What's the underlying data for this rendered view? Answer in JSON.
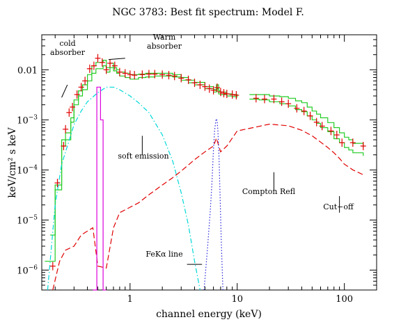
{
  "chart_data": {
    "type": "line",
    "title": "NGC 3783: Best fit spectrum: Model F.",
    "xlabel": "channel energy (keV)",
    "ylabel": "keV/cm² s keV",
    "xscale": "log",
    "yscale": "log",
    "xlim": [
      0.15,
      200
    ],
    "ylim": [
      4e-07,
      0.05
    ],
    "grid": false,
    "x_ticks": [
      {
        "value": 1,
        "label": "1"
      },
      {
        "value": 10,
        "label": "10"
      },
      {
        "value": 100,
        "label": "100"
      }
    ],
    "y_ticks": [
      {
        "value": 1e-06,
        "base": "10",
        "exp": "−6"
      },
      {
        "value": 1e-05,
        "base": "10",
        "exp": "−5"
      },
      {
        "value": 0.0001,
        "base": "10",
        "exp": "−4"
      },
      {
        "value": 0.001,
        "base": "10",
        "exp": "−3"
      },
      {
        "value": 0.01,
        "label": "0.01"
      }
    ],
    "series": [
      {
        "role": "model-total-lo",
        "color": "#22cc22",
        "style": "step",
        "x": [
          0.16,
          0.2,
          0.23,
          0.25,
          0.28,
          0.3,
          0.33,
          0.36,
          0.4,
          0.44,
          0.48,
          0.52,
          0.56,
          0.6,
          0.65,
          0.7,
          0.75,
          0.8,
          0.9,
          1.0,
          1.2,
          1.4,
          1.7,
          2.0,
          2.5,
          3.0,
          3.5,
          4.0,
          5.0,
          6.0,
          6.4,
          6.7,
          7.0,
          8.0,
          9.0,
          10.0
        ],
        "y": [
          1.5e-06,
          4e-05,
          0.0003,
          0.0004,
          0.0009,
          0.002,
          0.003,
          0.004,
          0.006,
          0.0085,
          0.0105,
          0.0105,
          0.012,
          0.009,
          0.011,
          0.0095,
          0.0085,
          0.0075,
          0.007,
          0.0065,
          0.007,
          0.0072,
          0.0075,
          0.0075,
          0.0072,
          0.0062,
          0.0055,
          0.005,
          0.0042,
          0.0036,
          0.0042,
          0.0033,
          0.0032,
          0.003,
          0.0029,
          0.0028
        ]
      },
      {
        "role": "model-total-hi",
        "color": "#22cc22",
        "style": "step",
        "x": [
          0.18,
          0.2,
          0.23,
          0.25,
          0.28,
          0.3,
          0.33,
          0.36,
          0.4,
          0.44,
          0.48,
          0.52,
          0.56,
          0.6,
          0.65,
          0.7,
          0.75,
          0.8,
          0.9,
          1.0,
          1.2,
          1.4,
          1.7,
          2.0,
          2.5,
          3.0,
          3.5,
          4.0,
          5.0,
          6.0,
          6.4,
          6.7,
          7.0,
          8.0,
          9.0,
          10.0
        ],
        "y": [
          5e-06,
          5e-05,
          0.0004,
          0.00055,
          0.0011,
          0.0025,
          0.0038,
          0.005,
          0.008,
          0.012,
          0.014,
          0.014,
          0.0155,
          0.011,
          0.0135,
          0.011,
          0.01,
          0.009,
          0.0085,
          0.008,
          0.0082,
          0.0085,
          0.0085,
          0.0085,
          0.008,
          0.007,
          0.0062,
          0.0056,
          0.0046,
          0.004,
          0.005,
          0.0038,
          0.0036,
          0.0033,
          0.0032,
          0.003
        ]
      },
      {
        "role": "model-hard-lo",
        "color": "#22cc22",
        "style": "step",
        "x": [
          13,
          16,
          20,
          25,
          30,
          35,
          40,
          45,
          50,
          55,
          60,
          70,
          80,
          90,
          100,
          110,
          120,
          150
        ],
        "y": [
          0.0026,
          0.0025,
          0.0023,
          0.0021,
          0.0019,
          0.0016,
          0.00145,
          0.0012,
          0.001,
          0.00085,
          0.0007,
          0.00058,
          0.00042,
          0.00035,
          0.00028,
          0.00025,
          0.00022,
          0.00019
        ]
      },
      {
        "role": "model-hard-hi",
        "color": "#22cc22",
        "style": "step",
        "x": [
          13,
          16,
          20,
          25,
          30,
          35,
          40,
          45,
          50,
          55,
          60,
          70,
          80,
          90,
          100,
          110,
          120,
          150
        ],
        "y": [
          0.0032,
          0.0032,
          0.003,
          0.0029,
          0.0027,
          0.0024,
          0.0022,
          0.0018,
          0.0015,
          0.0013,
          0.0011,
          0.00088,
          0.0007,
          0.00055,
          0.00045,
          0.0004,
          0.00034,
          0.00028
        ]
      },
      {
        "role": "soft-emission",
        "color": "#00d8d8",
        "style": "dashdot",
        "x": [
          0.17,
          0.2,
          0.23,
          0.26,
          0.3,
          0.35,
          0.4,
          0.5,
          0.6,
          0.7,
          0.8,
          1.0,
          1.2,
          1.5,
          2.0,
          2.5,
          3.0,
          3.5,
          4.0,
          4.5
        ],
        "y": [
          4e-07,
          2e-05,
          0.00013,
          0.0003,
          0.0008,
          0.0015,
          0.0023,
          0.0035,
          0.0045,
          0.0045,
          0.004,
          0.003,
          0.0022,
          0.0014,
          0.0005,
          0.00015,
          3.5e-05,
          8e-06,
          1.5e-06,
          4e-07
        ]
      },
      {
        "role": "compton-reflection",
        "color": "#e00000",
        "style": "dashed",
        "x": [
          0.19,
          0.22,
          0.25,
          0.3,
          0.35,
          0.4,
          0.45,
          0.5,
          0.6,
          0.7,
          0.8,
          1.0,
          1.2,
          1.5,
          2.0,
          2.5,
          3.0,
          4.0,
          5.0,
          6.0,
          6.4,
          7.0,
          8.0,
          10.0,
          15,
          20,
          30,
          40,
          50,
          60,
          70,
          80,
          90,
          100,
          120,
          150
        ],
        "y": [
          4e-07,
          1.5e-06,
          2.5e-06,
          3e-06,
          5e-06,
          6e-06,
          7e-06,
          1.2e-06,
          1.1e-06,
          7e-06,
          1.4e-05,
          1.8e-05,
          2.2e-05,
          3.2e-05,
          5e-05,
          7e-05,
          9.5e-05,
          0.00016,
          0.00023,
          0.0003,
          0.00043,
          0.00023,
          0.0003,
          0.0006,
          0.00072,
          0.00082,
          0.00076,
          0.00062,
          0.00048,
          0.00036,
          0.00028,
          0.00022,
          0.00017,
          0.00013,
          0.0001,
          8e-05
        ]
      },
      {
        "role": "feka-line",
        "color": "#2222dd",
        "style": "dotted",
        "x": [
          4.9,
          5.3,
          5.6,
          5.8,
          6.0,
          6.15,
          6.3,
          6.4,
          6.5,
          6.6,
          6.75,
          6.9,
          7.1,
          7.35
        ],
        "y": [
          4e-07,
          3e-06,
          1.5e-05,
          5e-05,
          0.00025,
          0.0006,
          0.00095,
          0.00105,
          0.00095,
          0.0006,
          0.0002,
          4e-05,
          4e-06,
          4e-07
        ]
      },
      {
        "role": "line-feature-0.5keV",
        "color": "#dd00dd",
        "style": "step",
        "x": [
          0.45,
          0.47,
          0.49,
          0.51,
          0.53,
          0.545,
          0.56,
          0.6
        ],
        "y": [
          4e-07,
          4e-07,
          0.0045,
          0.0045,
          0.001,
          0.001,
          4e-07,
          4e-07
        ]
      },
      {
        "role": "data",
        "color": "#e00000",
        "style": "crosses",
        "points": [
          {
            "x": 0.19,
            "y": 1.2e-06
          },
          {
            "x": 0.21,
            "y": 5.5e-05
          },
          {
            "x": 0.24,
            "y": 0.0003
          },
          {
            "x": 0.25,
            "y": 0.00065
          },
          {
            "x": 0.27,
            "y": 0.0014
          },
          {
            "x": 0.29,
            "y": 0.0018
          },
          {
            "x": 0.32,
            "y": 0.0032
          },
          {
            "x": 0.35,
            "y": 0.0045
          },
          {
            "x": 0.38,
            "y": 0.006
          },
          {
            "x": 0.42,
            "y": 0.0105
          },
          {
            "x": 0.46,
            "y": 0.012
          },
          {
            "x": 0.5,
            "y": 0.017
          },
          {
            "x": 0.55,
            "y": 0.014
          },
          {
            "x": 0.6,
            "y": 0.01
          },
          {
            "x": 0.65,
            "y": 0.0135
          },
          {
            "x": 0.72,
            "y": 0.012
          },
          {
            "x": 0.8,
            "y": 0.009
          },
          {
            "x": 0.9,
            "y": 0.0085
          },
          {
            "x": 1.0,
            "y": 0.008
          },
          {
            "x": 1.1,
            "y": 0.0078
          },
          {
            "x": 1.3,
            "y": 0.008
          },
          {
            "x": 1.5,
            "y": 0.0082
          },
          {
            "x": 1.7,
            "y": 0.0082
          },
          {
            "x": 2.0,
            "y": 0.008
          },
          {
            "x": 2.3,
            "y": 0.0078
          },
          {
            "x": 2.6,
            "y": 0.0075
          },
          {
            "x": 3.0,
            "y": 0.0068
          },
          {
            "x": 3.5,
            "y": 0.0063
          },
          {
            "x": 4.0,
            "y": 0.0055
          },
          {
            "x": 4.5,
            "y": 0.005
          },
          {
            "x": 5.0,
            "y": 0.0046
          },
          {
            "x": 5.5,
            "y": 0.0042
          },
          {
            "x": 6.0,
            "y": 0.0039
          },
          {
            "x": 6.5,
            "y": 0.0044
          },
          {
            "x": 7.0,
            "y": 0.0036
          },
          {
            "x": 7.5,
            "y": 0.0034
          },
          {
            "x": 8.0,
            "y": 0.0033
          },
          {
            "x": 9.0,
            "y": 0.0032
          },
          {
            "x": 9.8,
            "y": 0.0031
          },
          {
            "x": 15,
            "y": 0.0027
          },
          {
            "x": 18,
            "y": 0.0026
          },
          {
            "x": 22,
            "y": 0.0026
          },
          {
            "x": 26,
            "y": 0.0023
          },
          {
            "x": 30,
            "y": 0.0021
          },
          {
            "x": 36,
            "y": 0.0017
          },
          {
            "x": 42,
            "y": 0.0015
          },
          {
            "x": 48,
            "y": 0.0012
          },
          {
            "x": 55,
            "y": 0.0009
          },
          {
            "x": 62,
            "y": 0.00075
          },
          {
            "x": 75,
            "y": 0.0006
          },
          {
            "x": 85,
            "y": 0.0005
          },
          {
            "x": 95,
            "y": 0.00035
          },
          {
            "x": 120,
            "y": 0.00035
          },
          {
            "x": 150,
            "y": 0.0003
          }
        ]
      }
    ],
    "annotations": [
      {
        "id": "cold-absorber",
        "lines": [
          "cold",
          "absorber"
        ],
        "pointer": [
          {
            "x": 0.26,
            "y": 0.005
          },
          {
            "x": 0.23,
            "y": 0.0028
          }
        ]
      },
      {
        "id": "warm-absorber",
        "lines": [
          "Warm",
          "absorber"
        ],
        "pointer": [
          {
            "x": 0.9,
            "y": 0.017
          },
          {
            "x": 0.63,
            "y": 0.016
          }
        ]
      },
      {
        "id": "soft-emission",
        "lines": [
          "soft emission"
        ],
        "pointer": [
          {
            "x": 1.3,
            "y": 0.00048
          },
          {
            "x": 1.3,
            "y": 0.0002
          }
        ]
      },
      {
        "id": "compton-refl",
        "lines": [
          "Compton Refl"
        ],
        "pointer": [
          {
            "x": 22,
            "y": 9e-05
          },
          {
            "x": 22,
            "y": 4e-05
          }
        ]
      },
      {
        "id": "cut-off",
        "lines": [
          "Cut−off"
        ],
        "pointer": [
          {
            "x": 90,
            "y": 3e-05
          },
          {
            "x": 90,
            "y": 1.4e-05
          }
        ]
      },
      {
        "id": "feka-line",
        "lines": [
          "FeKα line"
        ],
        "pointer": [
          {
            "x": 3.4,
            "y": 1.3e-06
          },
          {
            "x": 4.7,
            "y": 1.3e-06
          }
        ]
      }
    ]
  }
}
